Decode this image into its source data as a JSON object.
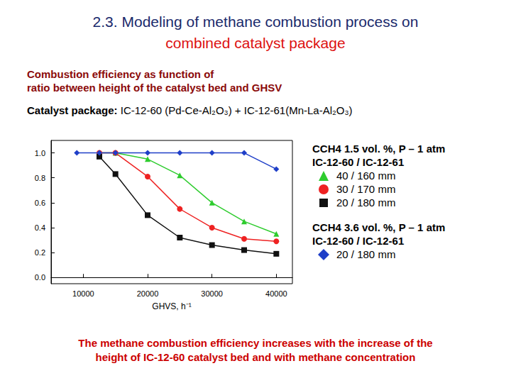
{
  "slide": {
    "title": [
      "2.3. Modeling of methane combustion process on",
      "combined catalyst package"
    ],
    "subtitle": [
      "Combustion efficiency as function of",
      "ratio between height of the catalyst bed and GHSV"
    ],
    "catalyst": {
      "label": "Catalyst package:",
      "text": "IC-12-60 (Pd-Ce-Al₂O₃) + IC-12-61(Mn-La-Al₂O₃)"
    },
    "conclusion": [
      "The methane combustion efficiency increases with the increase of the",
      "height of IC-12-60 catalyst bed and with methane concentration"
    ]
  },
  "chart_data": {
    "type": "line",
    "xlabel": "GHVS, h⁻¹",
    "x": [
      9000,
      12500,
      15000,
      20000,
      25000,
      30000,
      35000,
      40000
    ],
    "xlim": [
      5000,
      42500
    ],
    "xticks": [
      10000,
      20000,
      30000,
      40000
    ],
    "ylim": [
      -0.05,
      1.1
    ],
    "yticks": [
      {
        "value": 0,
        "label": "0.0"
      },
      0.2,
      0.4,
      0.6,
      0.8,
      {
        "value": 1,
        "label": "1.0"
      }
    ],
    "grid": false,
    "series": [
      {
        "name": "40 / 160 mm",
        "condition": [
          "CCH4 1.5 vol. %, P – 1 atm",
          "IC-12-60 / IC-12-61"
        ],
        "color": "#2ecc2e",
        "marker": "triangle",
        "values": [
          null,
          1.0,
          1.0,
          0.95,
          0.82,
          0.6,
          0.45,
          0.35
        ]
      },
      {
        "name": "30 / 170 mm",
        "condition": [
          "CCH4 1.5 vol. %, P – 1 atm",
          "IC-12-60 / IC-12-61"
        ],
        "color": "#ee2222",
        "marker": "circle",
        "values": [
          null,
          1.0,
          1.0,
          0.81,
          0.55,
          0.4,
          0.31,
          0.29
        ]
      },
      {
        "name": "20 / 180 mm",
        "condition": [
          "CCH4 1.5 vol. %, P – 1 atm",
          "IC-12-60 / IC-12-61"
        ],
        "color": "#111111",
        "marker": "square",
        "values": [
          null,
          0.97,
          0.83,
          0.5,
          0.32,
          0.26,
          0.22,
          0.19
        ]
      },
      {
        "name": "20 / 180 mm",
        "condition": [
          "CCH4 3.6 vol. %, P – 1 atm",
          "IC-12-60 / IC-12-61"
        ],
        "color": "#1f3fc8",
        "marker": "diamond",
        "values": [
          1.0,
          1.0,
          1.0,
          1.0,
          1.0,
          1.0,
          1.0,
          0.87
        ]
      }
    ]
  }
}
